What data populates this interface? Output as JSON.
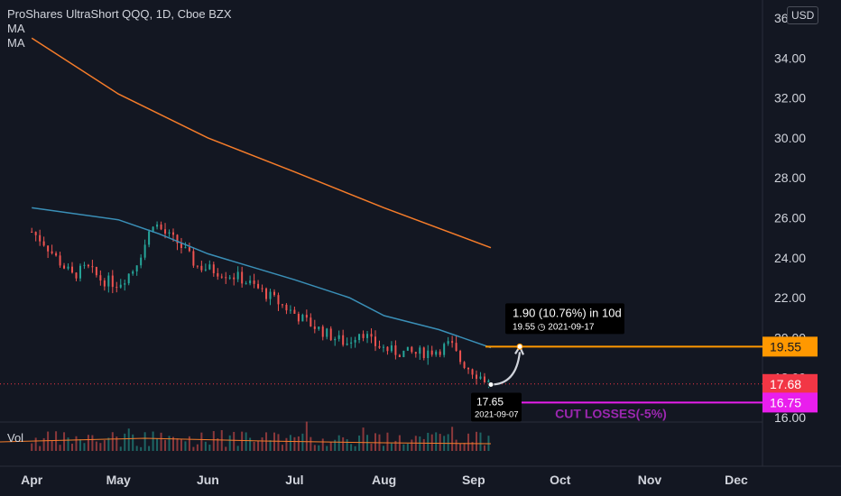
{
  "header": {
    "title": "ProShares UltraShort QQQ, 1D, Cboe BZX",
    "indicators": [
      "MA",
      "MA"
    ],
    "currency": "USD"
  },
  "volume_label": "Vol",
  "measure": {
    "text": "1.90 (10.76%) in 10d",
    "price": "19.55",
    "date": "2021-09-17"
  },
  "start_point": {
    "price": "17.65",
    "date": "2021-09-07"
  },
  "stop_label": "CUT LOSSES(-5%)",
  "colors": {
    "background": "#131722",
    "up": "#26a69a",
    "down": "#ef5350",
    "ma_long": "#f57c2a",
    "ma_short": "#3a8fb7",
    "target_line": "#ff9800",
    "stop": "#e91eed",
    "stop_text": "#9c27b0",
    "price_label": "#f23645"
  },
  "chart_data": {
    "type": "candlestick",
    "y_axis": {
      "ticks": [
        16.0,
        18.0,
        20.0,
        22.0,
        24.0,
        26.0,
        28.0,
        30.0,
        32.0,
        34.0,
        36.0
      ],
      "tick_labels": [
        "16.00",
        "18.00",
        "20.00",
        "22.00",
        "24.00",
        "26.00",
        "28.00",
        "30.00",
        "32.00",
        "34.00",
        "36"
      ],
      "range": [
        16.0,
        36.0
      ]
    },
    "x_axis": {
      "labels": [
        "Apr",
        "May",
        "Jun",
        "Jul",
        "Aug",
        "Sep",
        "Oct",
        "Nov",
        "Dec"
      ]
    },
    "price_labels": [
      {
        "value": 19.55,
        "label": "19.55",
        "kind": "target"
      },
      {
        "value": 17.68,
        "label": "17.68",
        "kind": "last"
      },
      {
        "value": 16.75,
        "label": "16.75",
        "kind": "stop"
      }
    ],
    "ma_long": [
      [
        "2021-04-01",
        35.0
      ],
      [
        "2021-05-01",
        32.2
      ],
      [
        "2021-06-01",
        30.0
      ],
      [
        "2021-07-01",
        28.3
      ],
      [
        "2021-08-01",
        26.5
      ],
      [
        "2021-09-07",
        24.5
      ]
    ],
    "ma_short": [
      [
        "2021-04-01",
        26.5
      ],
      [
        "2021-05-01",
        25.9
      ],
      [
        "2021-05-15",
        25.2
      ],
      [
        "2021-06-01",
        24.2
      ],
      [
        "2021-07-01",
        22.9
      ],
      [
        "2021-07-20",
        22.0
      ],
      [
        "2021-08-01",
        21.1
      ],
      [
        "2021-08-20",
        20.4
      ],
      [
        "2021-09-07",
        19.5
      ]
    ],
    "close_path": [
      [
        "2021-04-01",
        25.3
      ],
      [
        "2021-04-05",
        24.8
      ],
      [
        "2021-04-10",
        23.9
      ],
      [
        "2021-04-15",
        23.1
      ],
      [
        "2021-04-20",
        23.5
      ],
      [
        "2021-04-25",
        22.9
      ],
      [
        "2021-05-01",
        22.7
      ],
      [
        "2021-05-06",
        23.4
      ],
      [
        "2021-05-10",
        24.6
      ],
      [
        "2021-05-13",
        25.8
      ],
      [
        "2021-05-18",
        25.1
      ],
      [
        "2021-05-22",
        24.7
      ],
      [
        "2021-05-28",
        23.6
      ],
      [
        "2021-06-05",
        23.3
      ],
      [
        "2021-06-12",
        23.0
      ],
      [
        "2021-06-20",
        22.3
      ],
      [
        "2021-06-27",
        21.6
      ],
      [
        "2021-07-04",
        20.9
      ],
      [
        "2021-07-12",
        20.2
      ],
      [
        "2021-07-19",
        19.7
      ],
      [
        "2021-07-24",
        20.4
      ],
      [
        "2021-07-28",
        19.7
      ],
      [
        "2021-08-04",
        19.3
      ],
      [
        "2021-08-12",
        19.2
      ],
      [
        "2021-08-20",
        19.4
      ],
      [
        "2021-08-24",
        19.7
      ],
      [
        "2021-08-27",
        18.9
      ],
      [
        "2021-09-01",
        18.3
      ],
      [
        "2021-09-07",
        17.68
      ]
    ],
    "measure": {
      "from": [
        "2021-09-07",
        17.65
      ],
      "to": [
        "2021-09-17",
        19.55
      ]
    }
  }
}
